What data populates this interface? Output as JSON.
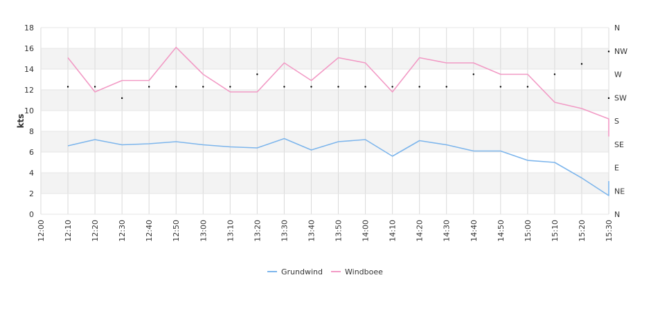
{
  "chart_data": {
    "type": "line",
    "ylabel": "kts",
    "ylim": [
      0,
      18
    ],
    "y_ticks": [
      "0",
      "2",
      "4",
      "6",
      "8",
      "10",
      "12",
      "14",
      "16",
      "18"
    ],
    "x_ticks": [
      "12:00",
      "12:10",
      "12:20",
      "12:30",
      "12:40",
      "12:50",
      "13:00",
      "13:10",
      "13:20",
      "13:30",
      "13:40",
      "13:50",
      "14:00",
      "14:10",
      "14:20",
      "14:30",
      "14:40",
      "14:50",
      "15:00",
      "15:10",
      "15:20",
      "15:30"
    ],
    "direction_ticks": [
      "N",
      "NE",
      "E",
      "SE",
      "S",
      "SW",
      "W",
      "NW",
      "N"
    ],
    "grid": true,
    "legend_position": "bottom",
    "series": [
      {
        "name": "Grundwind",
        "color": "#7cb5ec",
        "x": [
          "12:10",
          "12:20",
          "12:30",
          "12:40",
          "12:50",
          "13:00",
          "13:10",
          "13:20",
          "13:30",
          "13:40",
          "13:50",
          "14:00",
          "14:10",
          "14:20",
          "14:30",
          "14:40",
          "14:50",
          "15:00",
          "15:10",
          "15:20",
          "15:30",
          "15:30"
        ],
        "values": [
          6.6,
          7.2,
          6.7,
          6.8,
          7.0,
          6.7,
          6.5,
          6.4,
          7.3,
          6.2,
          7.0,
          7.2,
          5.6,
          7.1,
          6.7,
          6.1,
          6.1,
          5.2,
          5.0,
          3.5,
          1.8,
          3.2
        ]
      },
      {
        "name": "Windboee",
        "color": "#f29ac5",
        "x": [
          "12:10",
          "12:20",
          "12:30",
          "12:40",
          "12:50",
          "13:00",
          "13:10",
          "13:20",
          "13:30",
          "13:40",
          "13:50",
          "14:00",
          "14:10",
          "14:20",
          "14:30",
          "14:40",
          "14:50",
          "15:00",
          "15:10",
          "15:20",
          "15:30",
          "15:30"
        ],
        "values": [
          15.1,
          11.8,
          12.9,
          12.9,
          16.1,
          13.5,
          11.8,
          11.8,
          14.6,
          12.9,
          15.1,
          14.6,
          11.8,
          15.1,
          14.6,
          14.6,
          13.5,
          13.5,
          10.8,
          10.2,
          9.2,
          7.5
        ]
      },
      {
        "name": "Windrichtung",
        "type": "scatter",
        "color": "#000000",
        "x": [
          "12:10",
          "12:20",
          "12:30",
          "12:40",
          "12:50",
          "13:00",
          "13:10",
          "13:20",
          "13:30",
          "13:40",
          "13:50",
          "14:00",
          "14:10",
          "14:20",
          "14:30",
          "14:40",
          "14:50",
          "15:00",
          "15:10",
          "15:20",
          "15:30",
          "15:30"
        ],
        "values": [
          12.3,
          12.3,
          11.2,
          12.3,
          12.3,
          12.3,
          12.3,
          13.5,
          12.3,
          12.3,
          12.3,
          12.3,
          12.3,
          12.3,
          12.3,
          13.5,
          12.3,
          12.3,
          13.5,
          14.5,
          15.7,
          11.2
        ]
      }
    ]
  }
}
